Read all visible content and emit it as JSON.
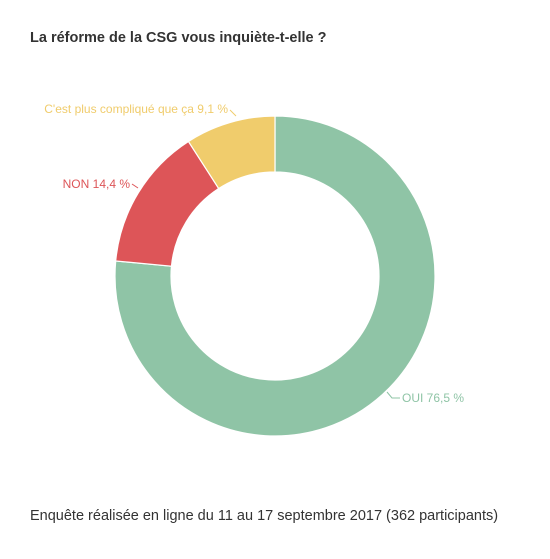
{
  "chart_data": {
    "type": "pie",
    "title": "La réforme de la CSG vous inquiète-t-elle ?",
    "footer": "Enquête réalisée en ligne du 11 au 17 septembre 2017 (362 participants)",
    "slices": [
      {
        "name": "OUI",
        "value": 76.5,
        "label": "OUI 76,5 %",
        "color": "#8fc4a6"
      },
      {
        "name": "NON",
        "value": 14.4,
        "label": "NON 14,4 %",
        "color": "#dd5558"
      },
      {
        "name": "C'est plus compliqué que ça",
        "value": 9.1,
        "label": "C'est plus compliqué que ça 9,1 %",
        "color": "#f0cc6c"
      }
    ]
  }
}
